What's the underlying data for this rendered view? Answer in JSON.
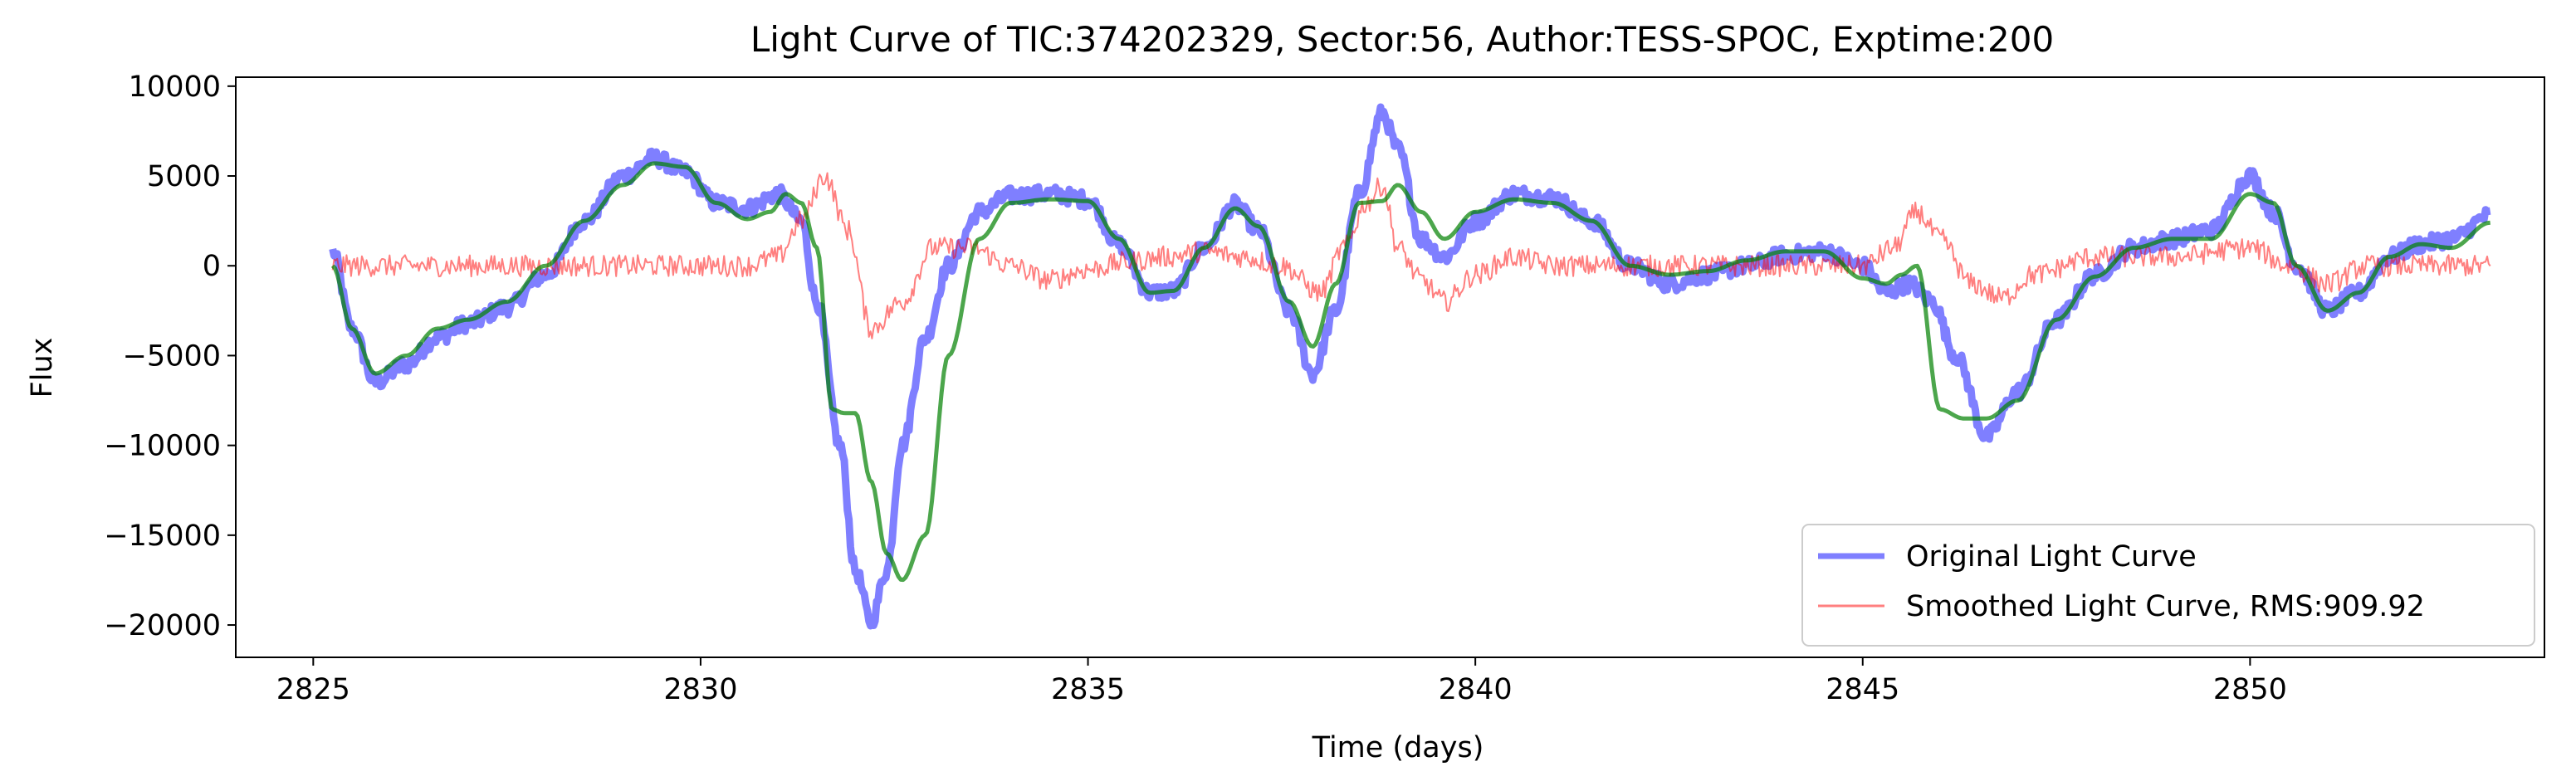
{
  "chart_data": {
    "type": "line",
    "title": "Light Curve of TIC:374202329, Sector:56, Author:TESS-SPOC, Exptime:200",
    "xlabel": "Time (days)",
    "ylabel": "Flux",
    "xlim": [
      2824.0,
      2853.8
    ],
    "ylim": [
      -21800,
      10500
    ],
    "xticks": [
      2825,
      2830,
      2835,
      2840,
      2845,
      2850
    ],
    "yticks": [
      10000,
      5000,
      0,
      -5000,
      -10000,
      -15000,
      -20000
    ],
    "xtick_labels": [
      "2825",
      "2830",
      "2835",
      "2840",
      "2845",
      "2850"
    ],
    "ytick_labels": [
      "10000",
      "5000",
      "0",
      "−5000",
      "−10000",
      "−15000",
      "−20000"
    ],
    "grid": false,
    "legend_position": "lower-right",
    "legend": [
      {
        "label": "Original Light Curve",
        "color": "#0000ff",
        "style": "thick"
      },
      {
        "label": "Smoothed Light Curve, RMS:909.92",
        "color": "#ff0000",
        "style": "thin"
      }
    ],
    "series": [
      {
        "name": "Original Light Curve",
        "color": "#0000ff",
        "opacity": 0.5,
        "noise": 450,
        "x": [
          2825.25,
          2825.5,
          2825.8,
          2826.2,
          2826.6,
          2827.0,
          2827.5,
          2828.0,
          2828.5,
          2829.0,
          2829.4,
          2829.8,
          2830.2,
          2830.6,
          2831.0,
          2831.3,
          2831.5,
          2831.8,
          2832.0,
          2832.2,
          2832.4,
          2832.6,
          2832.9,
          2833.2,
          2833.6,
          2834.0,
          2834.5,
          2835.0,
          2835.4,
          2835.8,
          2836.1,
          2836.5,
          2836.9,
          2837.2,
          2837.6,
          2837.9,
          2838.2,
          2838.5,
          2838.8,
          2839.0,
          2839.3,
          2839.6,
          2840.0,
          2840.5,
          2841.0,
          2841.5,
          2842.0,
          2842.5,
          2843.0,
          2843.5,
          2844.0,
          2844.5,
          2845.0,
          2845.3,
          2845.6,
          2845.9,
          2846.2,
          2846.6,
          2847.0,
          2847.5,
          2848.0,
          2848.5,
          2849.0,
          2849.5,
          2850.0,
          2850.3,
          2850.6,
          2851.0,
          2851.4,
          2851.8,
          2852.2,
          2852.6,
          2853.1
        ],
        "y": [
          800,
          -3500,
          -6500,
          -5500,
          -4000,
          -3200,
          -2300,
          -500,
          2500,
          5000,
          6000,
          5200,
          3500,
          3200,
          4000,
          2500,
          -2000,
          -10000,
          -17000,
          -19800,
          -17000,
          -10000,
          -4000,
          0,
          3000,
          3900,
          4000,
          3700,
          1200,
          -1500,
          -1400,
          1000,
          3400,
          2000,
          -2500,
          -6000,
          -2500,
          4000,
          8500,
          6500,
          1500,
          500,
          2500,
          4000,
          3800,
          2500,
          0,
          -1000,
          -500,
          0,
          600,
          800,
          0,
          -1500,
          -1000,
          -2000,
          -5000,
          -9500,
          -7000,
          -3000,
          -500,
          1000,
          1500,
          2000,
          5000,
          3000,
          0,
          -2500,
          -1500,
          500,
          1200,
          1500,
          2800
        ]
      },
      {
        "name": "Smoothed Light Curve, RMS:909.92",
        "color": "#ff0000",
        "opacity": 0.5,
        "noise": 600,
        "x": [
          2825.25,
          2826.0,
          2827.0,
          2828.0,
          2829.0,
          2830.0,
          2830.6,
          2831.0,
          2831.3,
          2831.6,
          2831.9,
          2832.2,
          2832.6,
          2833.0,
          2833.5,
          2834.0,
          2834.5,
          2835.0,
          2835.5,
          2836.0,
          2836.5,
          2837.0,
          2837.5,
          2838.0,
          2838.3,
          2838.6,
          2838.8,
          2839.0,
          2839.3,
          2839.6,
          2840.0,
          2840.5,
          2841.0,
          2842.0,
          2843.0,
          2844.0,
          2845.0,
          2845.4,
          2845.7,
          2846.0,
          2846.4,
          2846.8,
          2847.2,
          2848.0,
          2849.0,
          2850.0,
          2850.5,
          2851.0,
          2851.5,
          2852.0,
          2852.6,
          2853.1
        ],
        "y": [
          0,
          0,
          0,
          0,
          0,
          0,
          0,
          500,
          2500,
          5000,
          2000,
          -3500,
          -2000,
          1000,
          1000,
          0,
          -800,
          -200,
          200,
          500,
          800,
          500,
          0,
          -1500,
          1000,
          3500,
          4500,
          1000,
          -800,
          -2000,
          -500,
          500,
          0,
          0,
          0,
          0,
          0,
          1000,
          3000,
          1500,
          -1000,
          -1800,
          -500,
          500,
          500,
          1000,
          0,
          -1000,
          0,
          0,
          0,
          0
        ]
      },
      {
        "name": "",
        "color": "#008000",
        "opacity": 0.7,
        "noise": 0,
        "x": [
          2825.25,
          2825.5,
          2825.8,
          2826.2,
          2826.6,
          2827.0,
          2827.5,
          2828.0,
          2828.5,
          2829.0,
          2829.4,
          2829.8,
          2830.2,
          2830.6,
          2830.9,
          2831.1,
          2831.3,
          2831.5,
          2831.7,
          2831.85,
          2832.0,
          2832.2,
          2832.4,
          2832.6,
          2832.9,
          2833.2,
          2833.6,
          2834.0,
          2834.5,
          2835.0,
          2835.4,
          2835.8,
          2836.1,
          2836.5,
          2836.9,
          2837.2,
          2837.6,
          2837.9,
          2838.2,
          2838.5,
          2838.8,
          2839.0,
          2839.3,
          2839.6,
          2840.0,
          2840.5,
          2841.0,
          2841.5,
          2842.0,
          2842.5,
          2843.0,
          2843.5,
          2844.0,
          2844.5,
          2845.0,
          2845.3,
          2845.5,
          2845.7,
          2846.0,
          2846.3,
          2846.6,
          2847.0,
          2847.5,
          2848.0,
          2848.5,
          2849.0,
          2849.5,
          2850.0,
          2850.3,
          2850.6,
          2851.0,
          2851.4,
          2851.8,
          2852.2,
          2852.6,
          2853.1
        ],
        "y": [
          0,
          -3500,
          -6000,
          -5000,
          -3500,
          -3000,
          -2000,
          0,
          2500,
          4500,
          5700,
          5500,
          3500,
          2600,
          3000,
          4000,
          3500,
          1000,
          -8000,
          -8200,
          -8200,
          -12000,
          -16000,
          -17500,
          -15000,
          -5000,
          1500,
          3500,
          3700,
          3600,
          1500,
          -1500,
          -1400,
          1000,
          3200,
          2200,
          -2000,
          -4500,
          -1000,
          3500,
          3600,
          4500,
          3000,
          1500,
          3000,
          3700,
          3500,
          2500,
          0,
          -500,
          -300,
          300,
          800,
          800,
          -700,
          -1000,
          -500,
          0,
          -8000,
          -8500,
          -8500,
          -7500,
          -3000,
          -600,
          1000,
          1500,
          1500,
          4000,
          3500,
          0,
          -2500,
          -1500,
          500,
          1200,
          1000,
          2400
        ]
      }
    ]
  }
}
